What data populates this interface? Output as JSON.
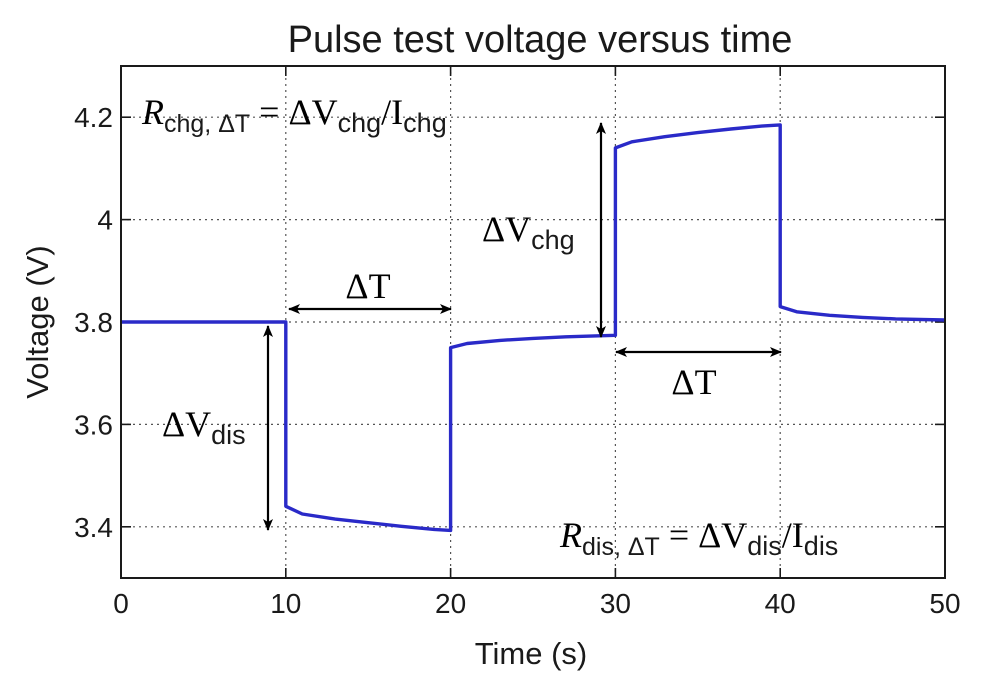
{
  "chart_data": {
    "type": "line",
    "title": "Pulse test voltage versus time",
    "xlabel": "Time (s)",
    "ylabel": "Voltage (V)",
    "xlim": [
      0,
      50
    ],
    "ylim": [
      3.3,
      4.3
    ],
    "xticks": [
      0,
      10,
      20,
      30,
      40,
      50
    ],
    "xtick_labels": [
      "0",
      "10",
      "20",
      "30",
      "40",
      "50"
    ],
    "yticks": [
      3.4,
      3.6,
      3.8,
      4.0,
      4.2
    ],
    "ytick_labels": [
      "3.4",
      "3.6",
      "3.8",
      "4",
      "4.2"
    ],
    "grid": true,
    "series": [
      {
        "color": "#2a2ac8",
        "x": [
          0,
          10,
          10,
          11,
          13,
          15,
          17,
          19,
          20,
          20,
          21,
          23,
          25,
          27,
          29,
          30,
          30,
          31,
          33,
          35,
          37,
          39,
          40,
          40,
          41,
          43,
          45,
          47,
          50
        ],
        "y": [
          3.8,
          3.8,
          3.44,
          3.425,
          3.415,
          3.408,
          3.401,
          3.395,
          3.393,
          3.75,
          3.758,
          3.764,
          3.768,
          3.771,
          3.773,
          3.774,
          4.14,
          4.152,
          4.162,
          4.17,
          4.177,
          4.183,
          4.185,
          3.83,
          3.82,
          3.813,
          3.809,
          3.806,
          3.804
        ]
      }
    ],
    "annotations": {
      "r_chg": {
        "r": "R",
        "sub": "chg, ΔT",
        "eq": " = ΔV",
        "sub2": "chg",
        "slash": "/I",
        "sub3": "chg"
      },
      "r_dis": {
        "r": "R",
        "sub": "dis, ΔT",
        "eq": " = ΔV",
        "sub2": "dis",
        "slash": "/I",
        "sub3": "dis"
      },
      "dt_label_1": "ΔT",
      "dt_label_2": "ΔT",
      "dv_chg": {
        "delta": "ΔV",
        "sub": "chg"
      },
      "dv_dis": {
        "delta": "ΔV",
        "sub": "dis"
      }
    }
  }
}
